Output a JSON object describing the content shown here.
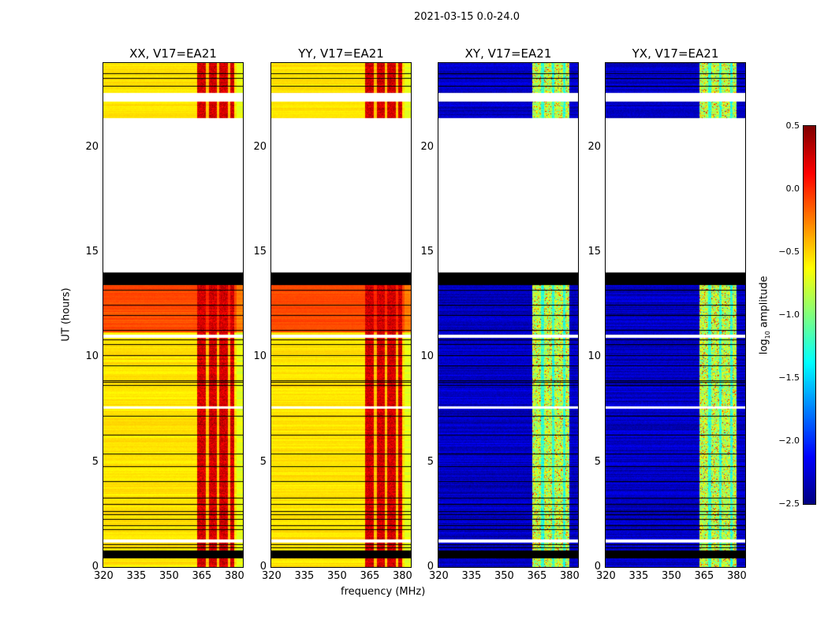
{
  "chart_data": {
    "type": "heatmap",
    "title": "2021-03-15 0.0-24.0",
    "xlabel": "frequency (MHz)",
    "ylabel": "UT (hours)",
    "xlim": [
      320,
      384
    ],
    "ylim": [
      0,
      24
    ],
    "xticks": [
      "320",
      "335",
      "350",
      "365",
      "380"
    ],
    "xtick_values": [
      320,
      335,
      350,
      365,
      380
    ],
    "yticks": [
      "0",
      "5",
      "10",
      "15",
      "20"
    ],
    "ytick_values": [
      0,
      5,
      10,
      15,
      20
    ],
    "panels": [
      {
        "title": "XX, V17=EA21",
        "kind": "parallel"
      },
      {
        "title": "YY, V17=EA21",
        "kind": "parallel"
      },
      {
        "title": "XY, V17=EA21",
        "kind": "cross"
      },
      {
        "title": "YX, V17=EA21",
        "kind": "cross"
      }
    ],
    "colorbar": {
      "label": "log10 amplitude",
      "label_main": "log",
      "label_sub": "10",
      "label_rest": " amplitude",
      "range": [
        -2.5,
        0.5
      ],
      "ticks": [
        "0.5",
        "0.0",
        "−0.5",
        "−1.0",
        "−1.5",
        "−2.0",
        "−2.5"
      ],
      "tick_values": [
        0.5,
        0.0,
        -0.5,
        -1.0,
        -1.5,
        -2.0,
        -2.5
      ],
      "colormap": "jet"
    },
    "no_data_hours": [
      [
        14.05,
        21.4
      ],
      [
        22.2,
        22.6
      ],
      [
        1.2,
        1.35
      ],
      [
        10.95,
        11.1
      ],
      [
        7.55,
        7.65
      ]
    ],
    "flagged_block_hours": [
      [
        13.45,
        14.05
      ],
      [
        0.45,
        0.8
      ]
    ],
    "flagged_line_hours": [
      0.95,
      1.1,
      1.8,
      2.0,
      2.3,
      2.5,
      2.65,
      3.0,
      3.3,
      4.1,
      4.8,
      5.4,
      6.3,
      7.2,
      8.65,
      8.8,
      8.9,
      9.6,
      10.1,
      10.6,
      10.85,
      11.3,
      12.0,
      12.5,
      13.2,
      22.9,
      23.3,
      23.5
    ],
    "rfi_band_mhz": [
      363,
      380
    ],
    "rfi_band_gaps_mhz": [
      367.5,
      372.5,
      377.5
    ],
    "levels": {
      "parallel_background": -0.55,
      "parallel_high_segment": -0.1,
      "parallel_band": 0.25,
      "cross_background": -2.3,
      "cross_band": -0.85
    }
  }
}
